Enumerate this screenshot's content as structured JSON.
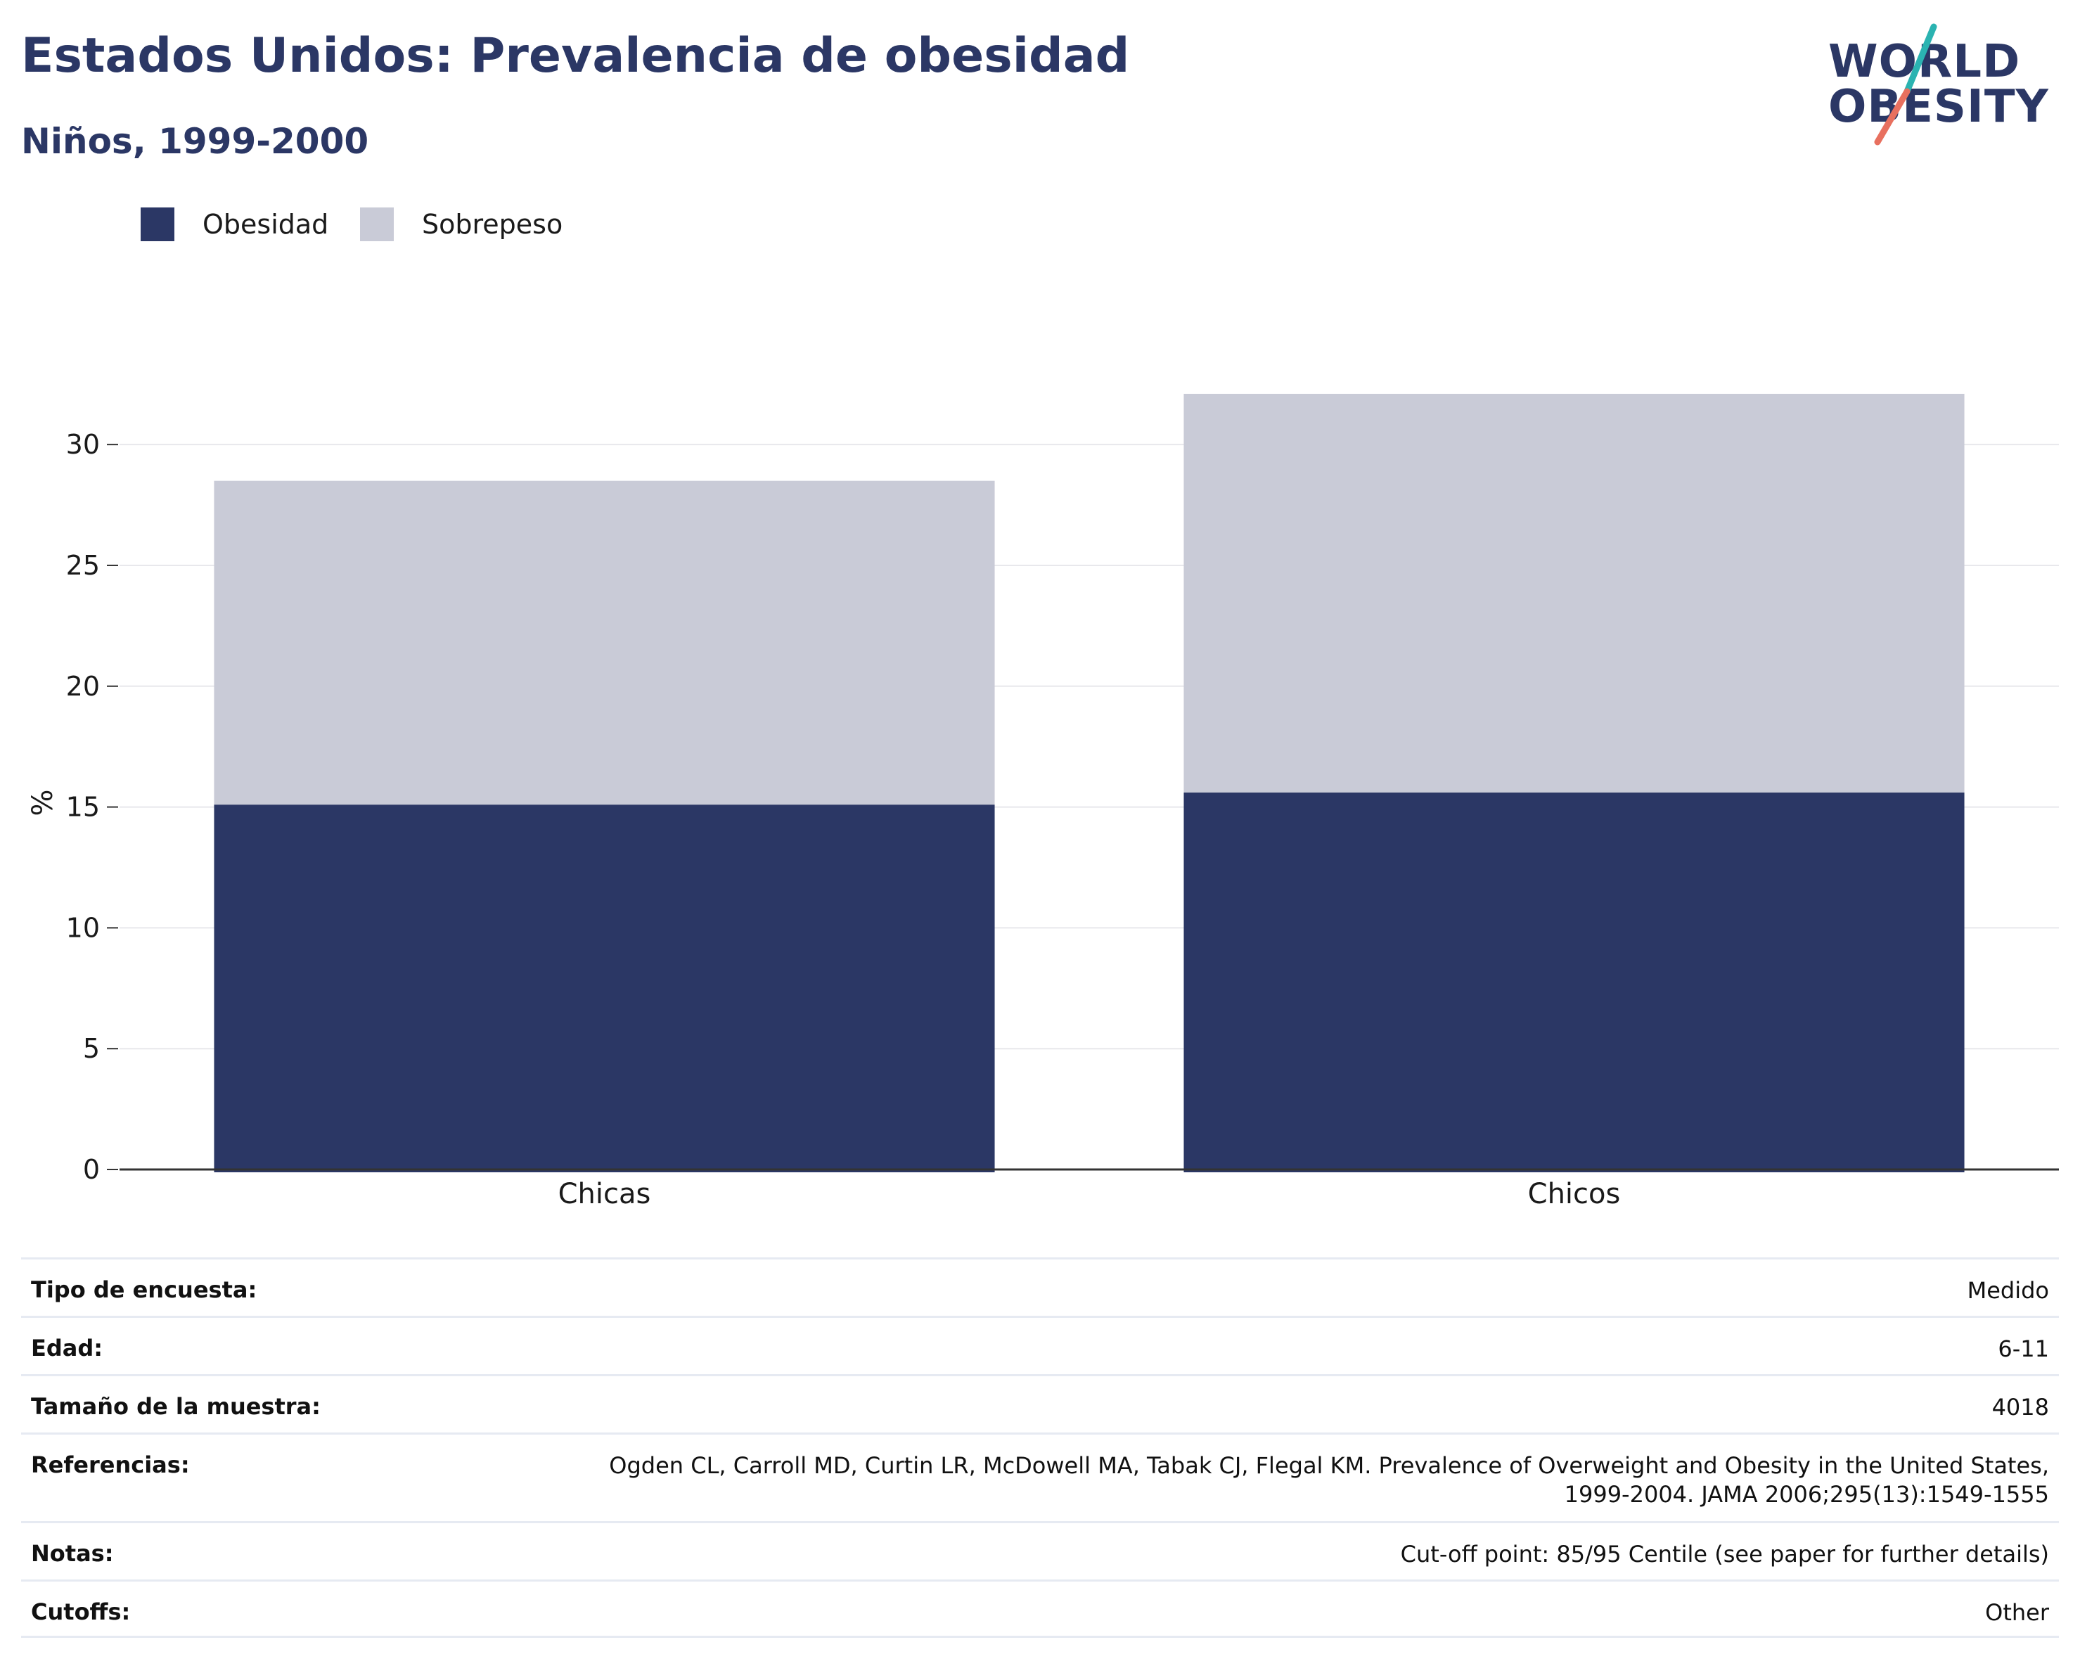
{
  "header": {
    "title": "Estados Unidos: Prevalencia de obesidad",
    "subtitle": "Niños, 1999-2000"
  },
  "logo": {
    "line1": "WORLD",
    "line2": "OBESITY",
    "colors": {
      "text": "#2b3765",
      "teal": "#2bb3b1",
      "coral": "#e8705f"
    }
  },
  "legend": [
    {
      "label": "Obesidad",
      "color": "#2b3765"
    },
    {
      "label": "Sobrepeso",
      "color": "#c9cbd7"
    }
  ],
  "chart_data": {
    "type": "bar",
    "stacked": true,
    "categories": [
      "Chicas",
      "Chicos"
    ],
    "series": [
      {
        "name": "Obesidad",
        "values": [
          15.1,
          15.6
        ],
        "color": "#2b3765"
      },
      {
        "name": "Sobrepeso",
        "values": [
          13.4,
          16.5
        ],
        "color": "#c9cbd7"
      }
    ],
    "ylabel": "%",
    "ylim": [
      0,
      32.1
    ],
    "yticks": [
      0,
      5,
      10,
      15,
      20,
      25,
      30
    ],
    "grid": true,
    "legend_position": "top-left"
  },
  "info": [
    {
      "label": "Tipo de encuesta:",
      "value": "Medido"
    },
    {
      "label": "Edad:",
      "value": "6-11"
    },
    {
      "label": "Tamaño de la muestra:",
      "value": "4018"
    },
    {
      "label": "Referencias:",
      "value": "Ogden CL, Carroll MD, Curtin LR, McDowell MA, Tabak CJ, Flegal KM. Prevalence of Overweight and Obesity in the United States, 1999-2004. JAMA 2006;295(13):1549-1555"
    },
    {
      "label": "Notas:",
      "value": "Cut-off point: 85/95 Centile (see paper for further details)"
    },
    {
      "label": "Cutoffs:",
      "value": "Other"
    }
  ]
}
